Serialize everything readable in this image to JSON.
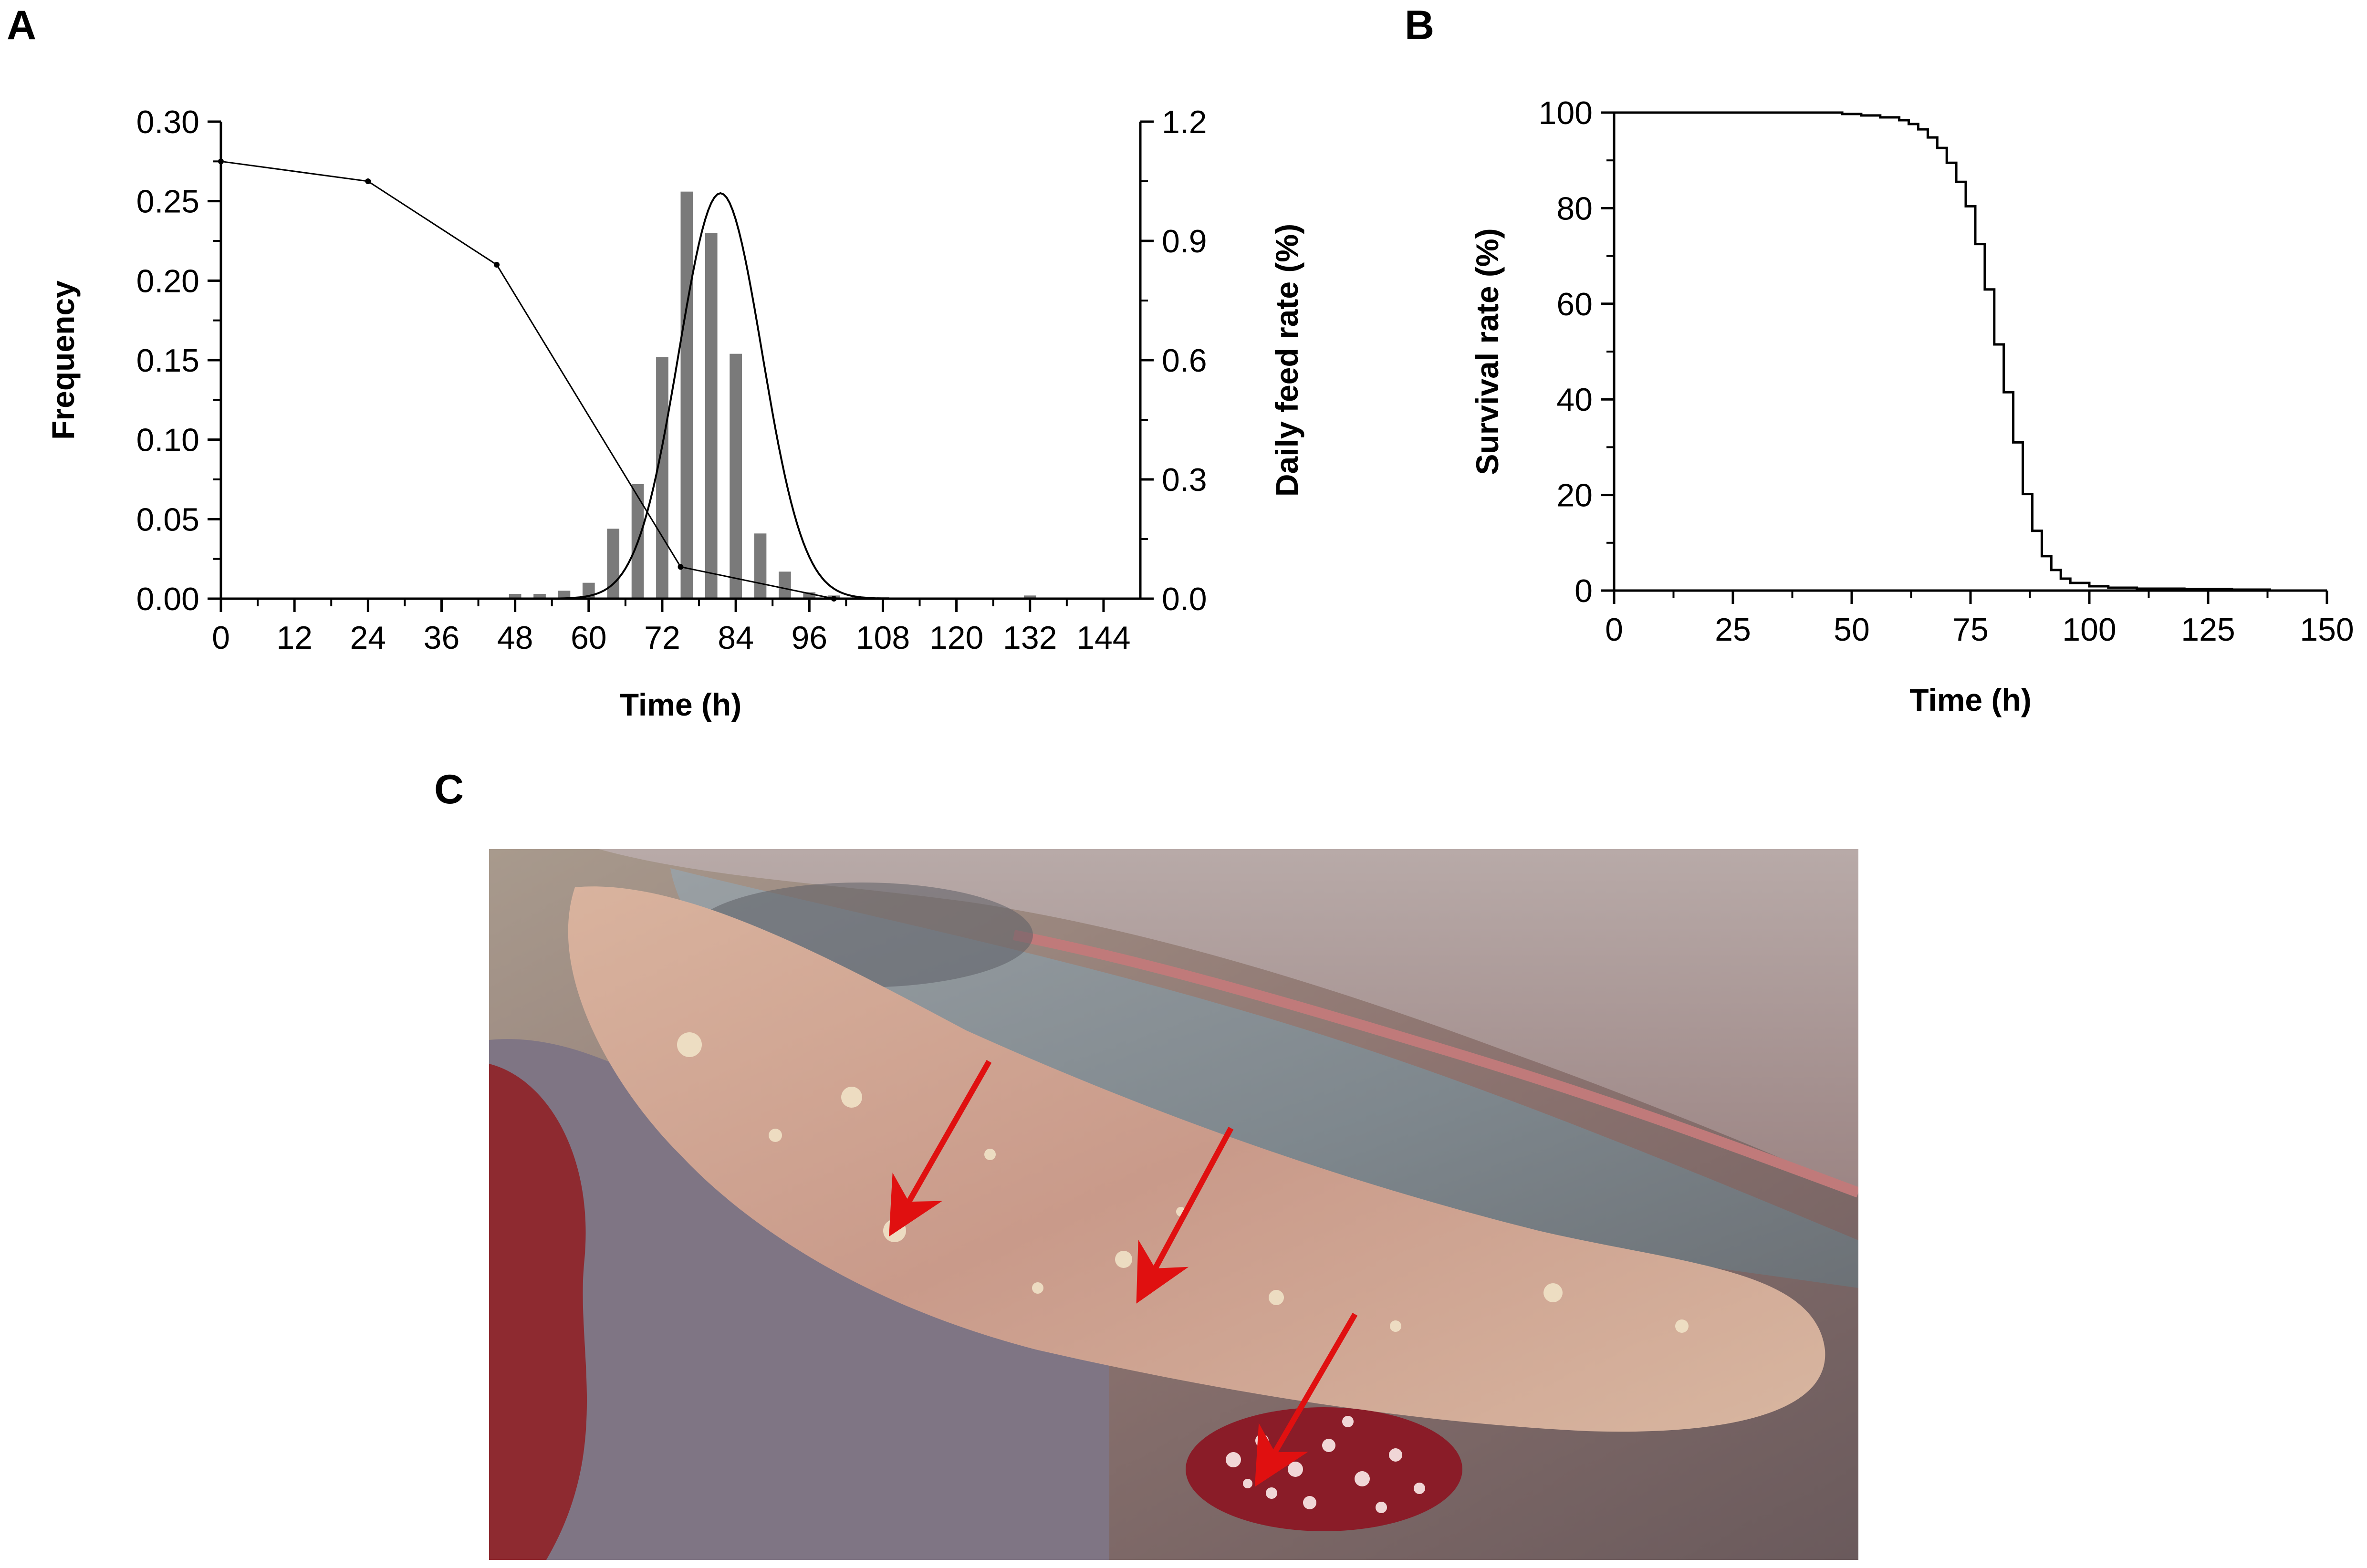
{
  "panels": {
    "a_label": "A",
    "b_label": "B",
    "c_label": "C"
  },
  "chart_data": [
    {
      "panel": "A",
      "type": "bar",
      "xlabel": "Time (h)",
      "ylabel": "Frequency",
      "ylabel_right": "Daily feed rate (%)",
      "xlim": [
        0,
        150
      ],
      "ylim": [
        0,
        0.3
      ],
      "ylim_right": [
        0,
        1.2
      ],
      "xticks": [
        0,
        12,
        24,
        36,
        48,
        60,
        72,
        84,
        96,
        108,
        120,
        132,
        144
      ],
      "yticks": [
        "0.00",
        "0.05",
        "0.10",
        "0.15",
        "0.20",
        "0.25",
        "0.30"
      ],
      "yticks_right": [
        "0.0",
        "0.3",
        "0.6",
        "0.9",
        "1.2"
      ],
      "bar_color": "#7a7a7a",
      "bars": {
        "x": [
          48,
          52,
          56,
          60,
          64,
          68,
          72,
          76,
          80,
          84,
          88,
          92,
          96,
          100,
          104,
          108,
          132
        ],
        "frequency": [
          0.003,
          0.003,
          0.005,
          0.01,
          0.044,
          0.072,
          0.152,
          0.256,
          0.23,
          0.154,
          0.041,
          0.017,
          0.004,
          0.002,
          0.001,
          0.001,
          0.002
        ]
      },
      "fit_curve": {
        "type": "gaussian",
        "mean": 81.5,
        "sd": 6.8,
        "peak": 0.255
      },
      "feed_rate_line": {
        "x": [
          0,
          24,
          45,
          75,
          100
        ],
        "y": [
          1.1,
          1.05,
          0.84,
          0.08,
          0.0
        ]
      }
    },
    {
      "panel": "B",
      "type": "line",
      "xlabel": "Time (h)",
      "ylabel": "Survival rate (%)",
      "xlim": [
        0,
        150
      ],
      "ylim": [
        0,
        100
      ],
      "xticks": [
        0,
        25,
        50,
        75,
        100,
        125,
        150
      ],
      "yticks": [
        0,
        20,
        40,
        60,
        80,
        100
      ],
      "series": [
        {
          "x": [
            0,
            48,
            52,
            56,
            60,
            62,
            64,
            66,
            68,
            70,
            72,
            74,
            76,
            78,
            80,
            82,
            84,
            86,
            88,
            90,
            92,
            94,
            96,
            100,
            104,
            110,
            120,
            130,
            138
          ],
          "y": [
            100,
            99.7,
            99.4,
            99.0,
            98.4,
            97.6,
            96.5,
            94.8,
            92.6,
            89.5,
            85.5,
            80.4,
            72.5,
            63.0,
            51.5,
            41.5,
            31.0,
            20.2,
            12.5,
            7.2,
            4.3,
            2.5,
            1.6,
            0.9,
            0.6,
            0.4,
            0.3,
            0.2,
            0.0
          ]
        }
      ]
    }
  ],
  "photo": {
    "arrow_color": "#e01010"
  }
}
